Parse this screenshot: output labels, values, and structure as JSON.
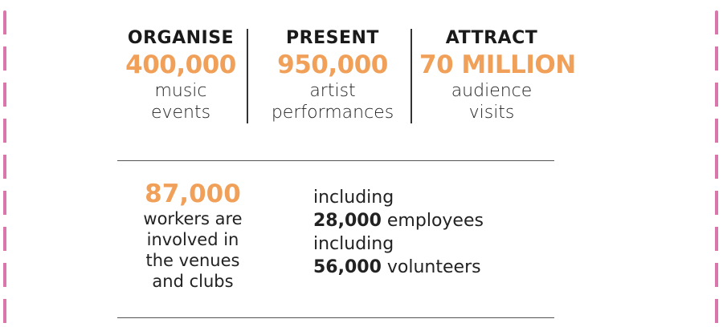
{
  "colors": {
    "accent": "#f0a058",
    "text": "#222222",
    "border_dash": "#d977ad"
  },
  "stats": [
    {
      "heading": "ORGANISE",
      "number": "400,000",
      "desc_lines": [
        "music",
        "events"
      ]
    },
    {
      "heading": "PRESENT",
      "number": "950,000",
      "desc_lines": [
        "artist",
        "performances"
      ]
    },
    {
      "heading": "ATTRACT",
      "number": "70 MILLION",
      "desc_lines": [
        "audience",
        "visits"
      ]
    }
  ],
  "workers": {
    "number": "87,000",
    "lines": [
      "workers are",
      "involved in",
      "the venues",
      "and clubs"
    ]
  },
  "breakdown": {
    "line1": "including",
    "employees_number": "28,000",
    "employees_label": " employees",
    "line3": "including",
    "volunteers_number": "56,000",
    "volunteers_label": " volunteers"
  }
}
